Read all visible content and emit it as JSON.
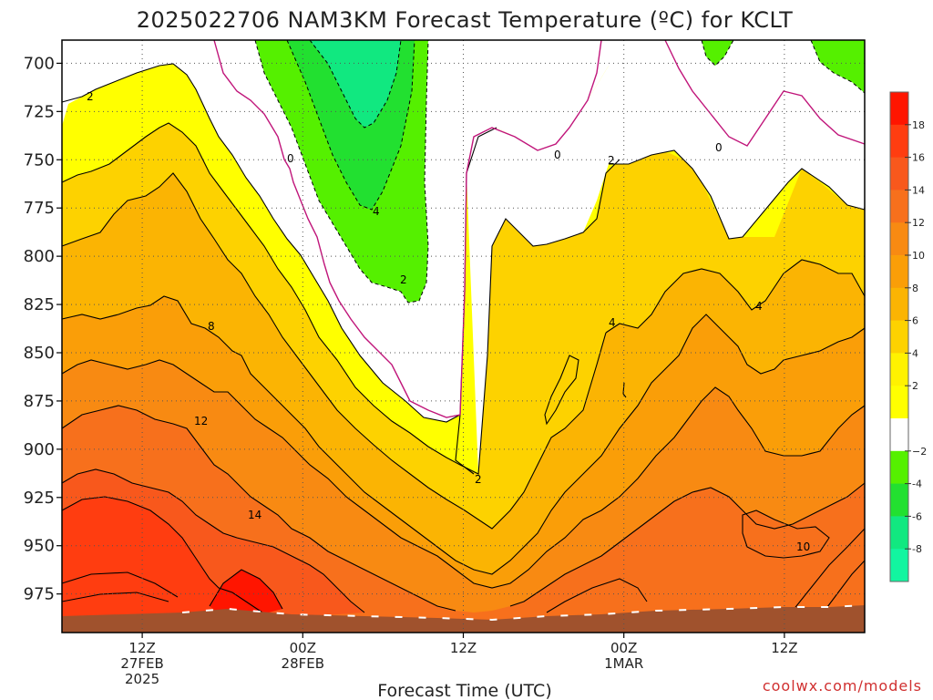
{
  "chart_data": {
    "type": "heatmap",
    "title": "2025022706 NAM3KM Forecast Temperature (ºC) for KCLT",
    "xlabel": "Forecast Time (UTC)",
    "ylabel": "",
    "credit": "coolwx.com/models",
    "y_ticks": [
      "700",
      "725",
      "750",
      "775",
      "800",
      "825",
      "850",
      "875",
      "900",
      "925",
      "950",
      "975"
    ],
    "x_ticks": [
      {
        "hour": 12,
        "lines": [
          "12Z",
          "27FEB",
          "2025"
        ]
      },
      {
        "hour": 24,
        "lines": [
          "00Z",
          "28FEB"
        ]
      },
      {
        "hour": 36,
        "lines": [
          "12Z"
        ]
      },
      {
        "hour": 48,
        "lines": [
          "00Z",
          "1MAR"
        ]
      },
      {
        "hour": 60,
        "lines": [
          "12Z"
        ]
      }
    ],
    "xlim": [
      6,
      66
    ],
    "ylim_hpa": [
      688,
      995
    ],
    "colorbar": {
      "ticks": [
        "18",
        "16",
        "14",
        "12",
        "10",
        "8",
        "6",
        "4",
        "2",
        "−2",
        "-4",
        "-6",
        "-8"
      ],
      "bands": [
        {
          "range": "18-20",
          "color": "#ff1500"
        },
        {
          "range": "16-18",
          "color": "#ff3d10"
        },
        {
          "range": "14-16",
          "color": "#f8581c"
        },
        {
          "range": "12-14",
          "color": "#f7701c"
        },
        {
          "range": "10-12",
          "color": "#f88a12"
        },
        {
          "range": "8-10",
          "color": "#fa9e08"
        },
        {
          "range": "6-8",
          "color": "#fbb403"
        },
        {
          "range": "4-6",
          "color": "#fdd200"
        },
        {
          "range": "2-4",
          "color": "#fff200"
        },
        {
          "range": "0-2",
          "color": "#ffff00"
        },
        {
          "range": "-2-2",
          "color": "#ffffff"
        },
        {
          "range": "-4--2",
          "color": "#55f000"
        },
        {
          "range": "-6--4",
          "color": "#22e030"
        },
        {
          "range": "-8--6",
          "color": "#11e880"
        },
        {
          "range": "-10--8",
          "color": "#12f5a0"
        }
      ]
    },
    "contour_labels": [
      "2",
      "0",
      "4",
      "2",
      "0",
      "0",
      "2",
      "8",
      "2",
      "4",
      "4",
      "12",
      "2",
      "14",
      "10"
    ],
    "ground_color": "#a0522d"
  }
}
